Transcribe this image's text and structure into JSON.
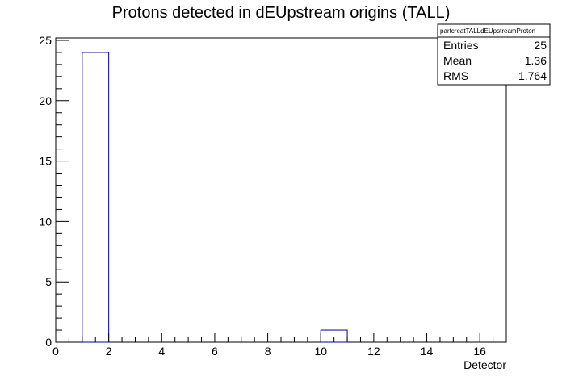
{
  "chart_data": {
    "type": "bar",
    "title": "Protons detected in dEUpstream origins (TALL)",
    "xlabel": "Detector",
    "ylabel": "",
    "xlim": [
      0,
      17
    ],
    "ylim": [
      0,
      25.2
    ],
    "x_ticks": [
      0,
      2,
      4,
      6,
      8,
      10,
      12,
      14,
      16
    ],
    "y_ticks": [
      0,
      5,
      10,
      15,
      20,
      25
    ],
    "bins": [
      {
        "low": 1,
        "high": 2,
        "value": 24
      },
      {
        "low": 10,
        "high": 11,
        "value": 1
      }
    ],
    "bar_color": "#000099",
    "grid": false,
    "stats_box": {
      "name": "partcreatTALLdEUpstreamProton",
      "rows": [
        {
          "label": "Entries",
          "value": "25"
        },
        {
          "label": "Mean",
          "value": "1.36"
        },
        {
          "label": "RMS",
          "value": "1.764"
        }
      ],
      "placement": "top-right"
    }
  }
}
